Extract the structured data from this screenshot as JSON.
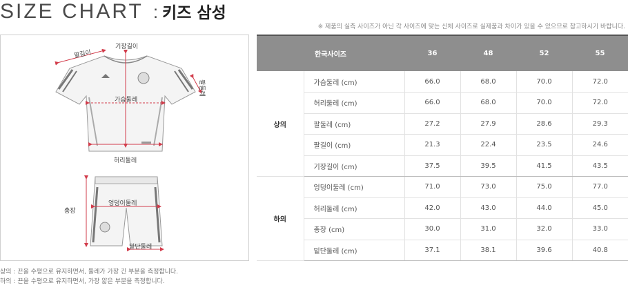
{
  "title": {
    "en": "SIZE CHART",
    "separator": ":",
    "kr": "키즈 삼성"
  },
  "notice": "※ 제품의 실측 사이즈가 아닌 각 사이즈에 맞는 신체 사이즈로 실제품과 차이가 있을 수 있으므로 참고하시기 바랍니다.",
  "diagram": {
    "sleeve_length": "팔길이",
    "total_length": "기장길이",
    "arm_girth": "팔둘레",
    "chest": "가슴둘레",
    "waist_top": "허리둘레",
    "hip": "엉덩이둘레",
    "pants_length": "총장",
    "hem": "밑단둘레"
  },
  "table": {
    "header": [
      "한국사이즈",
      "36",
      "48",
      "52",
      "55"
    ],
    "groups": [
      {
        "name": "상의",
        "rows": [
          {
            "label": "가슴둘레 (cm)",
            "values": [
              "66.0",
              "68.0",
              "70.0",
              "72.0"
            ]
          },
          {
            "label": "허리둘레 (cm)",
            "values": [
              "66.0",
              "68.0",
              "70.0",
              "72.0"
            ]
          },
          {
            "label": "팔둘레 (cm)",
            "values": [
              "27.2",
              "27.9",
              "28.6",
              "29.3"
            ]
          },
          {
            "label": "팔길이 (cm)",
            "values": [
              "21.3",
              "22.4",
              "23.5",
              "24.6"
            ]
          },
          {
            "label": "기장길이 (cm)",
            "values": [
              "37.5",
              "39.5",
              "41.5",
              "43.5"
            ]
          }
        ]
      },
      {
        "name": "하의",
        "rows": [
          {
            "label": "엉덩이둘레 (cm)",
            "values": [
              "71.0",
              "73.0",
              "75.0",
              "77.0"
            ]
          },
          {
            "label": "허리둘레 (cm)",
            "values": [
              "42.0",
              "43.0",
              "44.0",
              "45.0"
            ]
          },
          {
            "label": "총장 (cm)",
            "values": [
              "30.0",
              "31.0",
              "32.0",
              "33.0"
            ]
          },
          {
            "label": "밑단둘레 (cm)",
            "values": [
              "37.1",
              "38.1",
              "39.6",
              "40.8"
            ]
          }
        ]
      }
    ]
  },
  "footnotes": [
    "상의 : 끈을 수평으로 유지하면서, 둘레가 가장 긴 부분을 측정합니다.",
    "하의 : 끈을 수평으로 유지하면서, 가장 얇은 부분을 측정합니다."
  ],
  "colors": {
    "header_bg": "#8e8e8e",
    "measure_line": "#d23c4b"
  }
}
